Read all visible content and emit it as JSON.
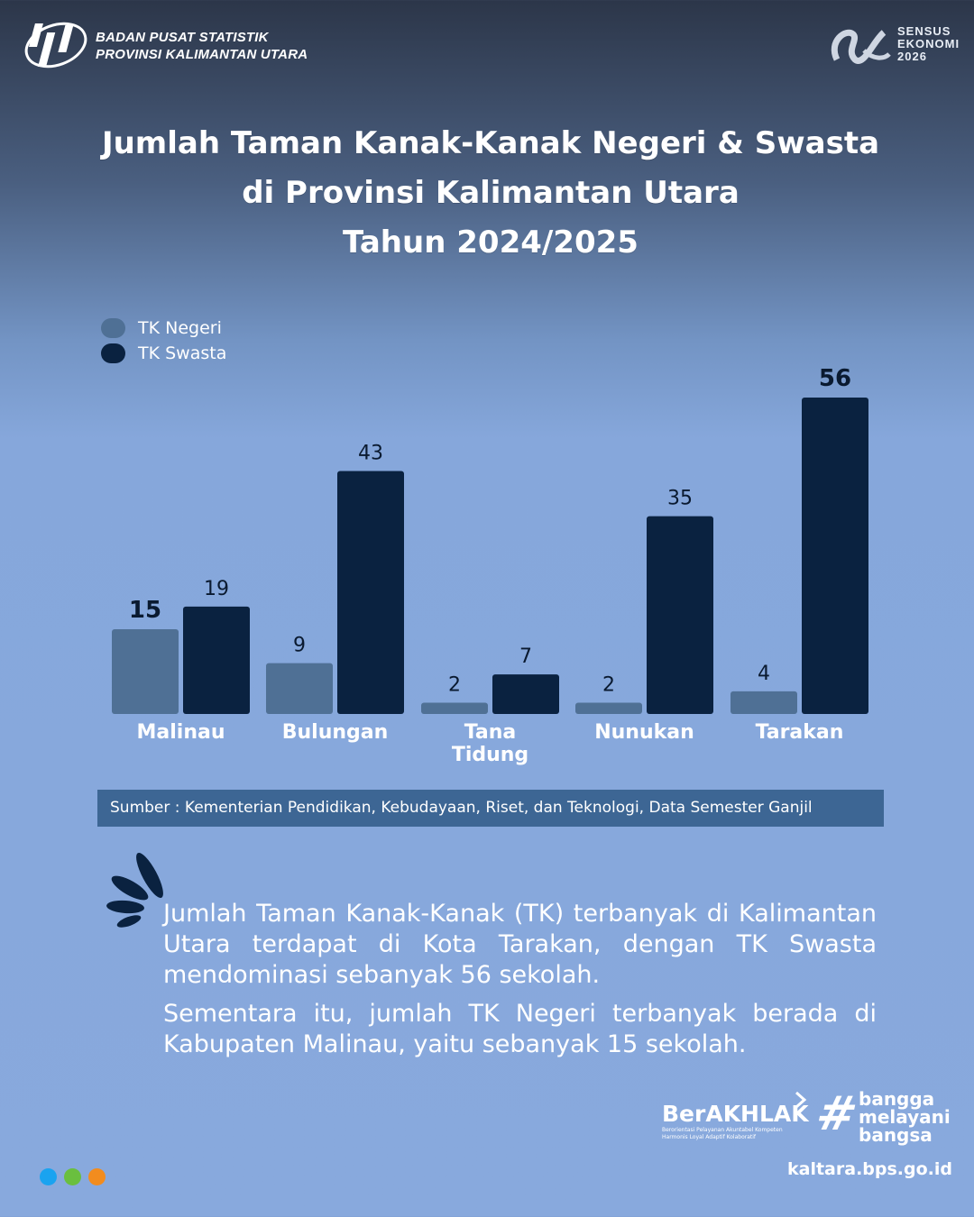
{
  "header": {
    "org_line1": "BADAN PUSAT STATISTIK",
    "org_line2": "PROVINSI KALIMANTAN UTARA",
    "sensus_line1": "SENSUS",
    "sensus_line2": "EKONOMI",
    "sensus_line3": "2026"
  },
  "title_lines": [
    "Jumlah Taman Kanak-Kanak Negeri & Swasta",
    "di Provinsi Kalimantan Utara",
    "Tahun 2024/2025"
  ],
  "chart_data": {
    "type": "bar",
    "categories": [
      "Malinau",
      "Bulungan",
      "Tana Tidung",
      "Nunukan",
      "Tarakan"
    ],
    "category_lines": [
      [
        "Malinau"
      ],
      [
        "Bulungan"
      ],
      [
        "Tana",
        "Tidung"
      ],
      [
        "Nunukan"
      ],
      [
        "Tarakan"
      ]
    ],
    "series": [
      {
        "name": "TK Negeri",
        "values": [
          15,
          9,
          2,
          2,
          4
        ],
        "color": "#4f7095"
      },
      {
        "name": "TK Swasta",
        "values": [
          19,
          43,
          7,
          35,
          56
        ],
        "color": "#0a2240"
      }
    ],
    "ylim": [
      0,
      56
    ],
    "grid": false,
    "legend": "top-left",
    "highlighted_labels": [
      "Malinau TK Negeri 15",
      "Tarakan TK Swasta 56"
    ]
  },
  "source": "Sumber : Kementerian Pendidikan, Kebudayaan, Riset, dan Teknologi, Data Semester Ganjil",
  "paragraphs": [
    "Jumlah Taman Kanak-Kanak (TK) terbanyak di Kalimantan Utara terdapat di Kota Tarakan, dengan TK Swasta mendominasi sebanyak 56 sekolah.",
    "Sementara itu, jumlah TK Negeri terbanyak berada di Kabupaten Malinau, yaitu sebanyak 15 sekolah."
  ],
  "footer": {
    "berakhlak": "BerAKHLAK",
    "berakhlak_sub1": "Berorientasi Pelayanan Akuntabel Kompeten",
    "berakhlak_sub2": "Harmonis Loyal Adaptif Kolaboratif",
    "tagline": [
      "bangga",
      "melayani",
      "bangsa"
    ],
    "website": "kaltara.bps.go.id",
    "dot_colors": [
      "#1aa3f0",
      "#6abf3f",
      "#f28c1e"
    ]
  }
}
